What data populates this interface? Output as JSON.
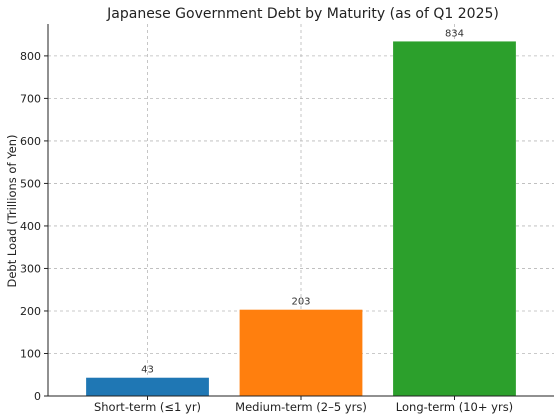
{
  "chart_data": {
    "type": "bar",
    "title": "Japanese Government Debt by Maturity (as of Q1 2025)",
    "xlabel": "",
    "ylabel": "Debt Load (Trillions of Yen)",
    "categories": [
      "Short-term (≤1 yr)",
      "Medium-term (2–5 yrs)",
      "Long-term (10+ yrs)"
    ],
    "values": [
      43,
      203,
      834
    ],
    "data_labels": [
      "43",
      "203",
      "834"
    ],
    "colors": [
      "#1f77b4",
      "#ff7f0e",
      "#2ca02c"
    ],
    "ylim": [
      0,
      875
    ],
    "yticks": [
      0,
      100,
      200,
      300,
      400,
      500,
      600,
      700,
      800
    ],
    "grid": true,
    "legend": "none"
  }
}
